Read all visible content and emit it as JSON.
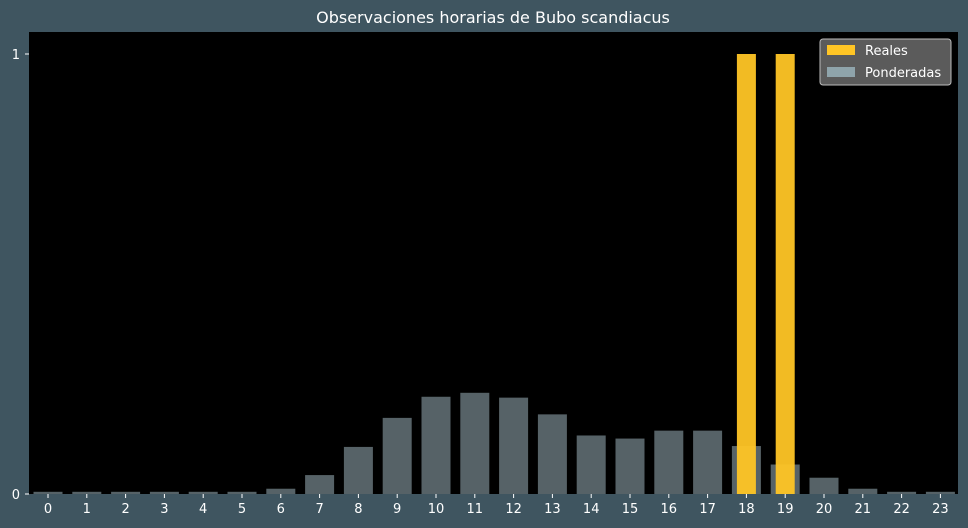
{
  "chart_data": {
    "type": "bar",
    "title": "Observaciones horarias de Bubo scandiacus",
    "xlabel": "",
    "ylabel": "",
    "categories": [
      "0",
      "1",
      "2",
      "3",
      "4",
      "5",
      "6",
      "7",
      "8",
      "9",
      "10",
      "11",
      "12",
      "13",
      "14",
      "15",
      "16",
      "17",
      "18",
      "19",
      "20",
      "21",
      "22",
      "23"
    ],
    "ylim": [
      0,
      1.05
    ],
    "yticks": [
      0,
      1
    ],
    "grid": false,
    "legend_position": "top-right",
    "series": [
      {
        "name": "Reales",
        "color": "#ffc525",
        "values": [
          0,
          0,
          0,
          0,
          0,
          0,
          0,
          0,
          0,
          0,
          0,
          0,
          0,
          0,
          0,
          0,
          0,
          0,
          1,
          1,
          0,
          0,
          0,
          0
        ]
      },
      {
        "name": "Ponderadas",
        "color": "#8fa4ab",
        "opacity": 0.6,
        "values": [
          0.005,
          0.005,
          0.005,
          0.005,
          0.005,
          0.005,
          0.012,
          0.043,
          0.107,
          0.173,
          0.221,
          0.23,
          0.219,
          0.181,
          0.133,
          0.126,
          0.144,
          0.144,
          0.109,
          0.067,
          0.037,
          0.012,
          0.005,
          0.005
        ]
      }
    ]
  }
}
